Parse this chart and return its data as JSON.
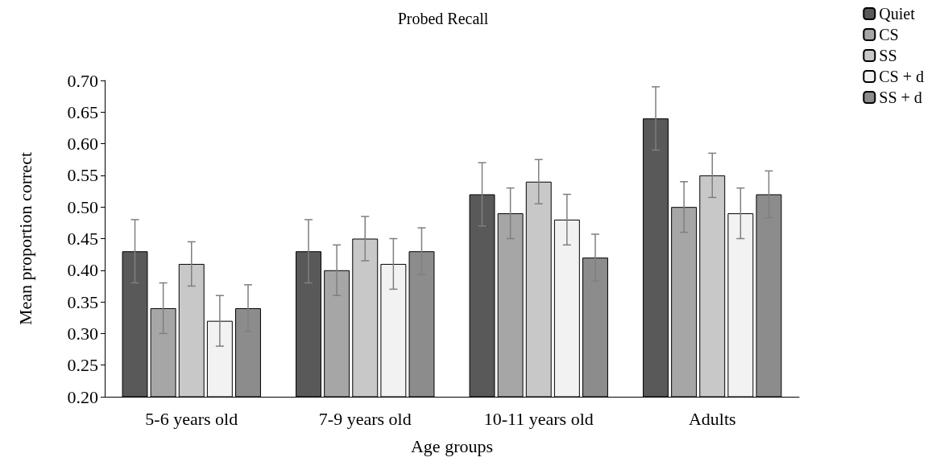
{
  "chart_data": {
    "type": "bar",
    "title": "Probed Recall",
    "xlabel": "Age groups",
    "ylabel": "Mean proportion correct",
    "categories": [
      "5-6 years old",
      "7-9 years old",
      "10-11 years old",
      "Adults"
    ],
    "series": [
      {
        "name": "Quiet",
        "color": "#595959",
        "values": [
          0.43,
          0.43,
          0.52,
          0.64
        ],
        "errors": [
          0.05,
          0.05,
          0.05,
          0.05
        ]
      },
      {
        "name": "CS",
        "color": "#a6a6a6",
        "values": [
          0.34,
          0.4,
          0.49,
          0.5
        ],
        "errors": [
          0.04,
          0.04,
          0.04,
          0.04
        ]
      },
      {
        "name": "SS",
        "color": "#c8c8c8",
        "values": [
          0.41,
          0.45,
          0.54,
          0.55
        ],
        "errors": [
          0.035,
          0.035,
          0.035,
          0.035
        ]
      },
      {
        "name": "CS + d",
        "color": "#f2f2f2",
        "values": [
          0.32,
          0.41,
          0.48,
          0.49
        ],
        "errors": [
          0.04,
          0.04,
          0.04,
          0.04
        ]
      },
      {
        "name": "SS + d",
        "color": "#8c8c8c",
        "values": [
          0.34,
          0.43,
          0.42,
          0.52
        ],
        "errors": [
          0.037,
          0.037,
          0.037,
          0.037
        ]
      }
    ],
    "ylim": [
      0.2,
      0.7
    ],
    "yticks": [
      {
        "value": 0.2,
        "label": "0.20"
      },
      0.25,
      {
        "value": 0.3,
        "label": "0.30"
      },
      0.35,
      {
        "value": 0.4,
        "label": "0.40"
      },
      0.45,
      {
        "value": 0.5,
        "label": "0.50"
      },
      0.55,
      {
        "value": 0.6,
        "label": "0.60"
      },
      0.65,
      {
        "value": 0.7,
        "label": "0.70"
      }
    ],
    "grid": false,
    "legend": "top right"
  }
}
